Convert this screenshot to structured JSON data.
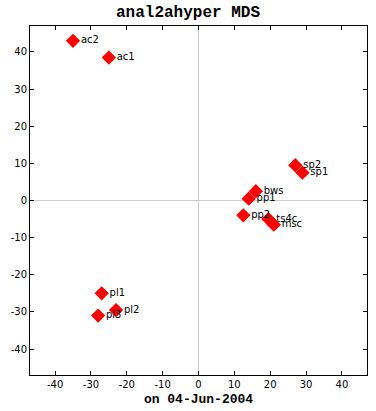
{
  "chart_data": {
    "type": "scatter",
    "title": "anal2ahyper MDS",
    "x_label": "on 04-Jun-2004",
    "x": [
      -35,
      -25,
      27,
      29,
      16,
      14,
      12.5,
      19.5,
      21,
      -27,
      -23,
      -28
    ],
    "values": [
      43,
      38.5,
      9.5,
      7.5,
      2.5,
      0.5,
      -4,
      -5,
      -6.5,
      -25,
      -29.5,
      -31
    ],
    "labels": [
      "ac2",
      "ac1",
      "sp2",
      "sp1",
      "bws",
      "pp1",
      "pp2",
      "ts4c",
      "msc",
      "pl1",
      "pl2",
      "pl3"
    ],
    "color": "#ff0000",
    "marker": "diamond",
    "xlim": [
      -47,
      47
    ],
    "xticks": [
      -40,
      -30,
      -20,
      -10,
      0,
      10,
      20,
      30,
      40
    ],
    "ylim": [
      -47,
      47
    ],
    "yticks": [
      -40,
      -30,
      -20,
      -10,
      0,
      10,
      20,
      30,
      40
    ],
    "grid": false
  }
}
